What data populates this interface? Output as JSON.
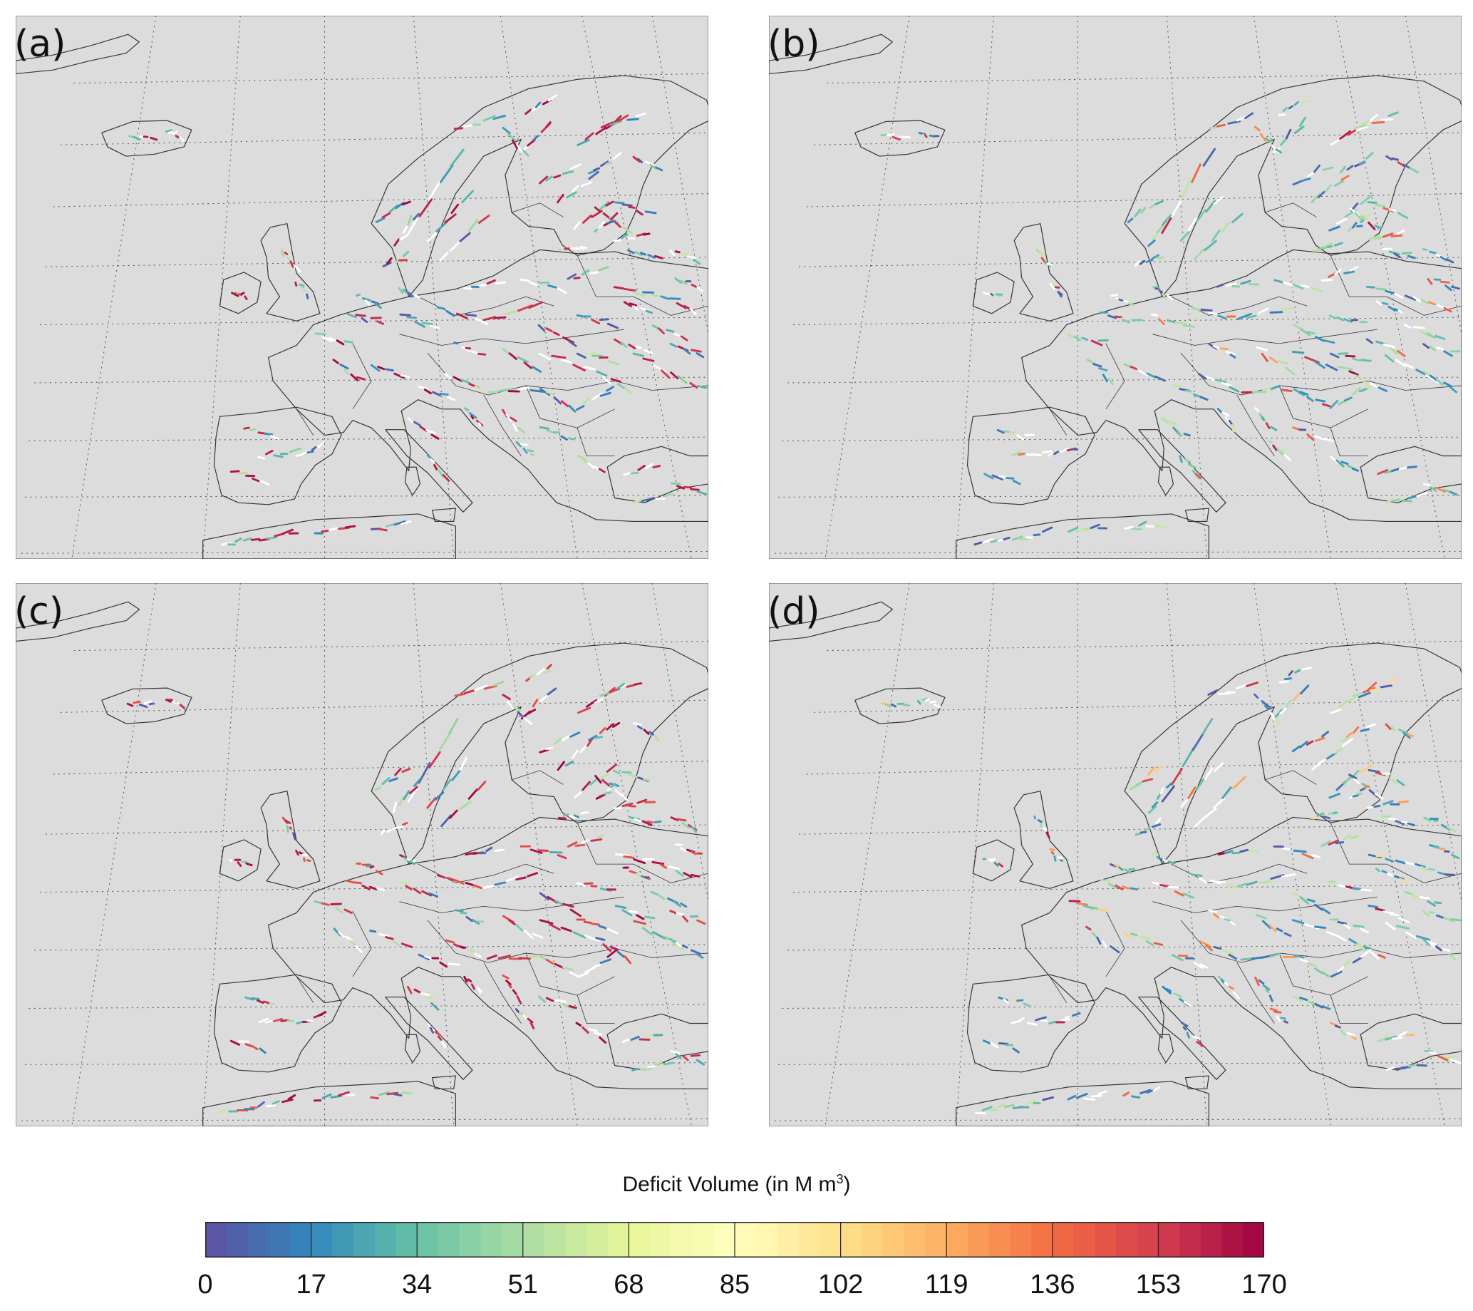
{
  "panels": [
    {
      "label": "(a)"
    },
    {
      "label": "(b)"
    },
    {
      "label": "(c)"
    },
    {
      "label": "(d)"
    }
  ],
  "colorbar": {
    "title": "Deficit Volume (in M m",
    "title_sup": "3",
    "title_end": ")",
    "min": 0,
    "max": 170,
    "ticks": [
      "0",
      "17",
      "34",
      "51",
      "68",
      "85",
      "102",
      "119",
      "136",
      "153",
      "170"
    ],
    "segments": 50,
    "colormap": "Spectral (reversed): blue → green → yellow → orange → dark red"
  },
  "colors": {
    "land_background": "#dcdcdc",
    "coastline": "#333333",
    "graticule": "#555555",
    "no_deficit_rivers": "#ffffff"
  }
}
